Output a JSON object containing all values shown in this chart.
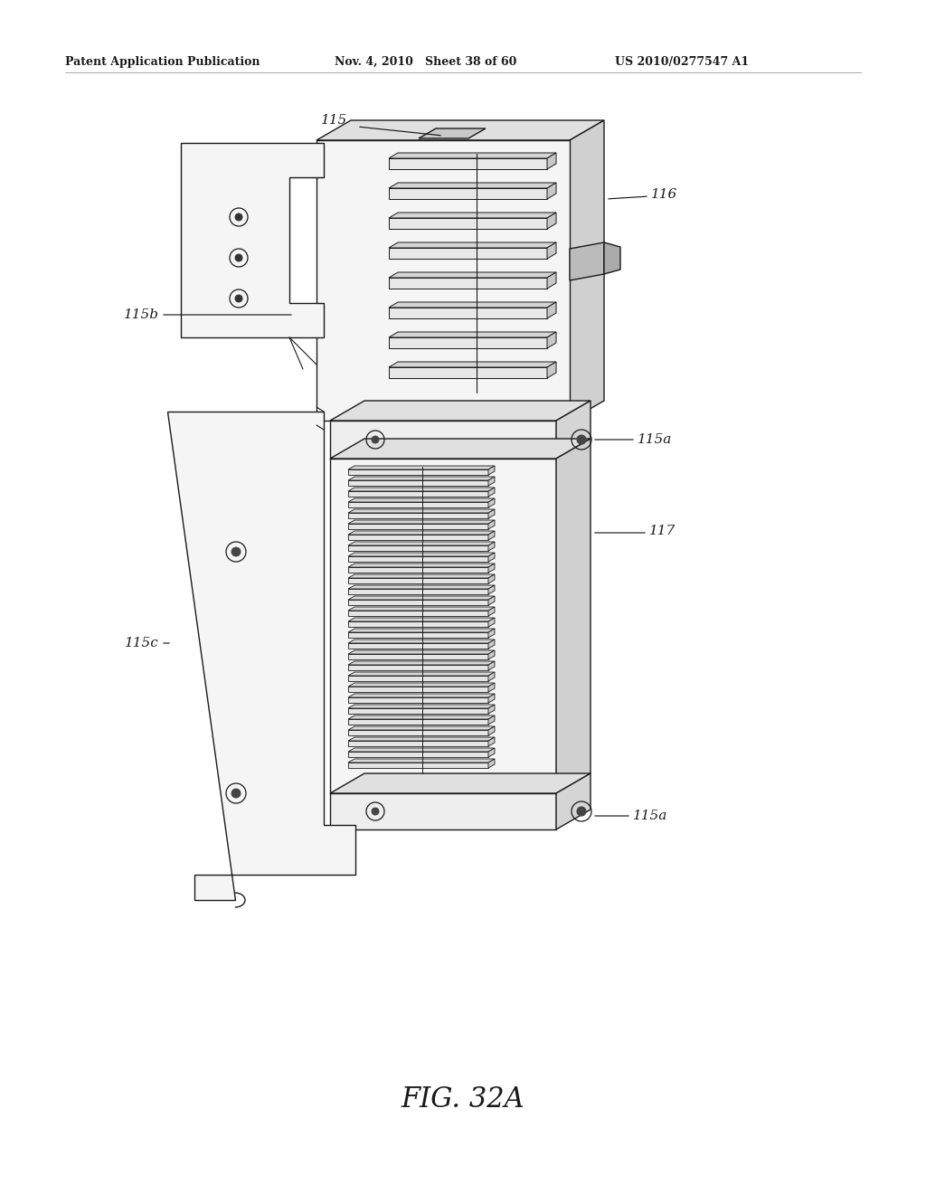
{
  "bg_color": "#ffffff",
  "line_color": "#1a1a1a",
  "header_left": "Patent Application Publication",
  "header_mid": "Nov. 4, 2010   Sheet 38 of 60",
  "header_right": "US 2010/0277547 A1",
  "figure_label": "FIG. 32A",
  "face_colors": {
    "front": "#f5f5f5",
    "top": "#e0e0e0",
    "right": "#d0d0d0",
    "tab": "#c8c8c8",
    "white": "#ffffff"
  }
}
